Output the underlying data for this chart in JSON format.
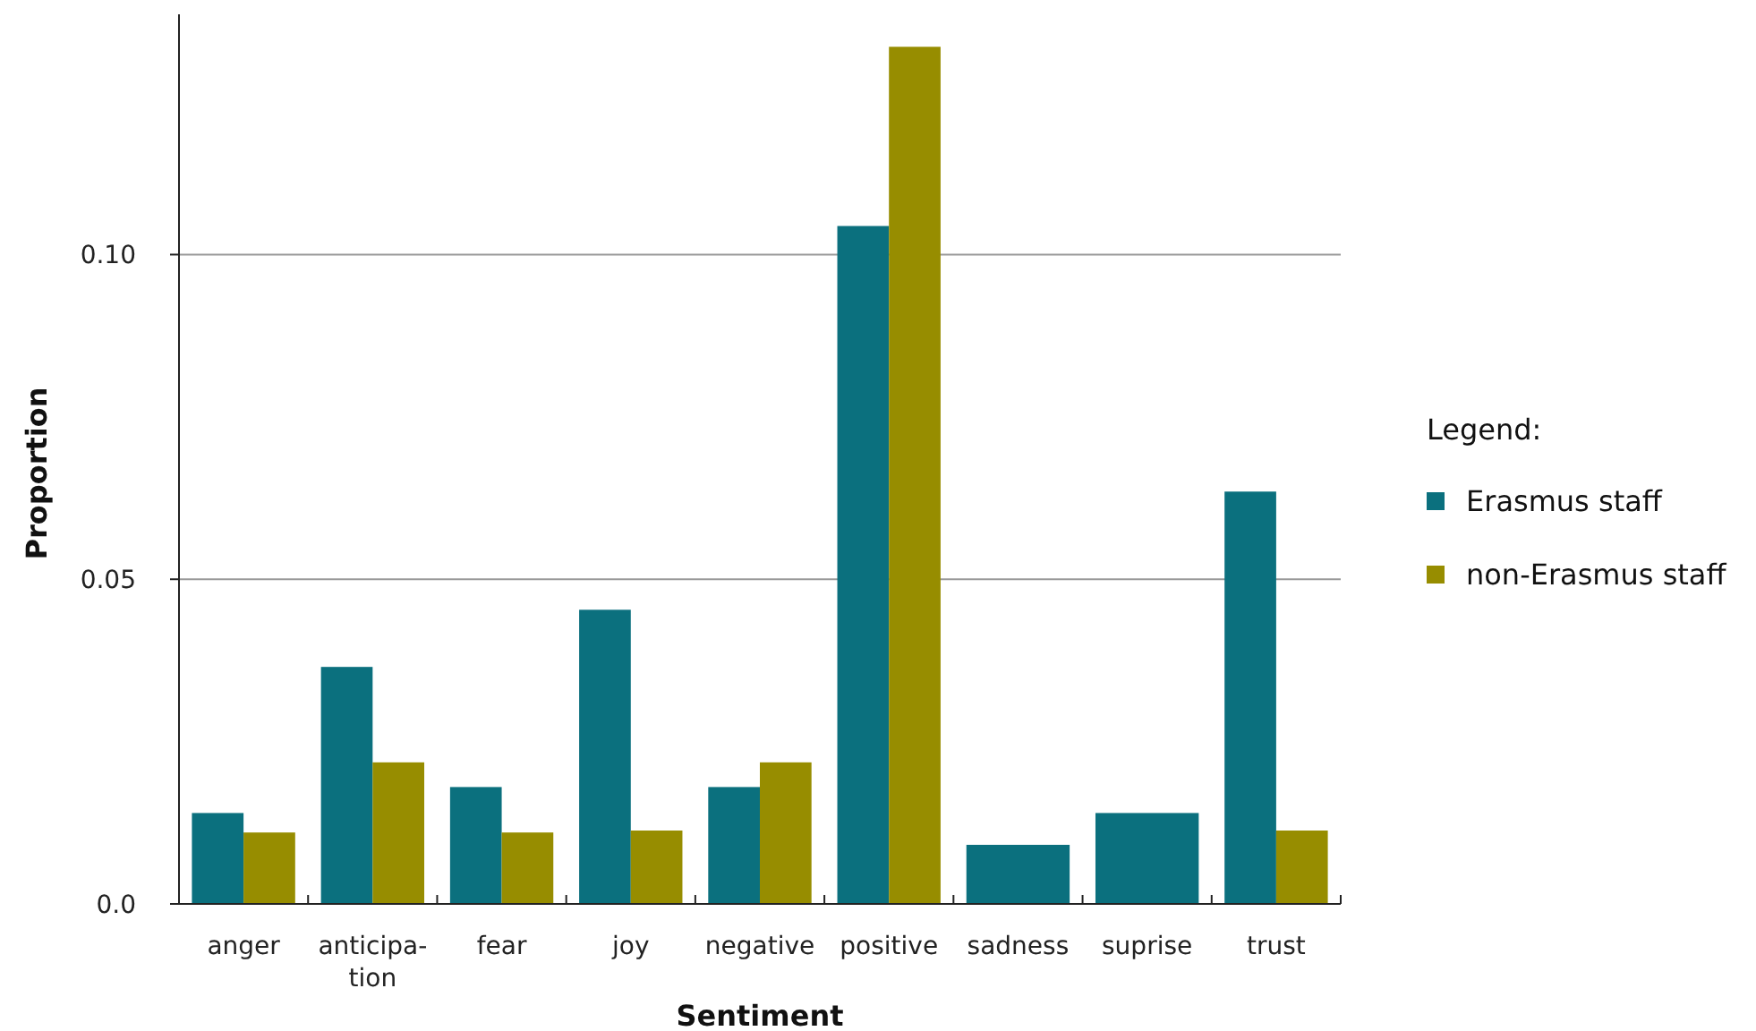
{
  "chart_data": {
    "type": "bar",
    "xlabel": "Sentiment",
    "ylabel": "Proportion",
    "legend_title": "Legend:",
    "legend": "right",
    "grid": "y",
    "categories": [
      "anger",
      "anticipa-tion",
      "fear",
      "joy",
      "negative",
      "positive",
      "sadness",
      "suprise",
      "trust"
    ],
    "ylim": [
      0,
      0.137
    ],
    "yticks": [
      {
        "value": 0,
        "label": "0.0"
      },
      0.05,
      {
        "value": 0.1,
        "label": "0.10"
      }
    ],
    "series": [
      {
        "name": "Erasmus staff",
        "color": "#0b707e",
        "values": [
          0.014,
          0.0365,
          0.018,
          0.0453,
          0.018,
          0.1044,
          0.0091,
          0.014,
          0.0635
        ]
      },
      {
        "name": "non-Erasmus staff",
        "color": "#978d00",
        "values": [
          0.011,
          0.0218,
          0.011,
          0.0113,
          0.0218,
          0.132,
          null,
          null,
          0.0113
        ]
      }
    ]
  }
}
